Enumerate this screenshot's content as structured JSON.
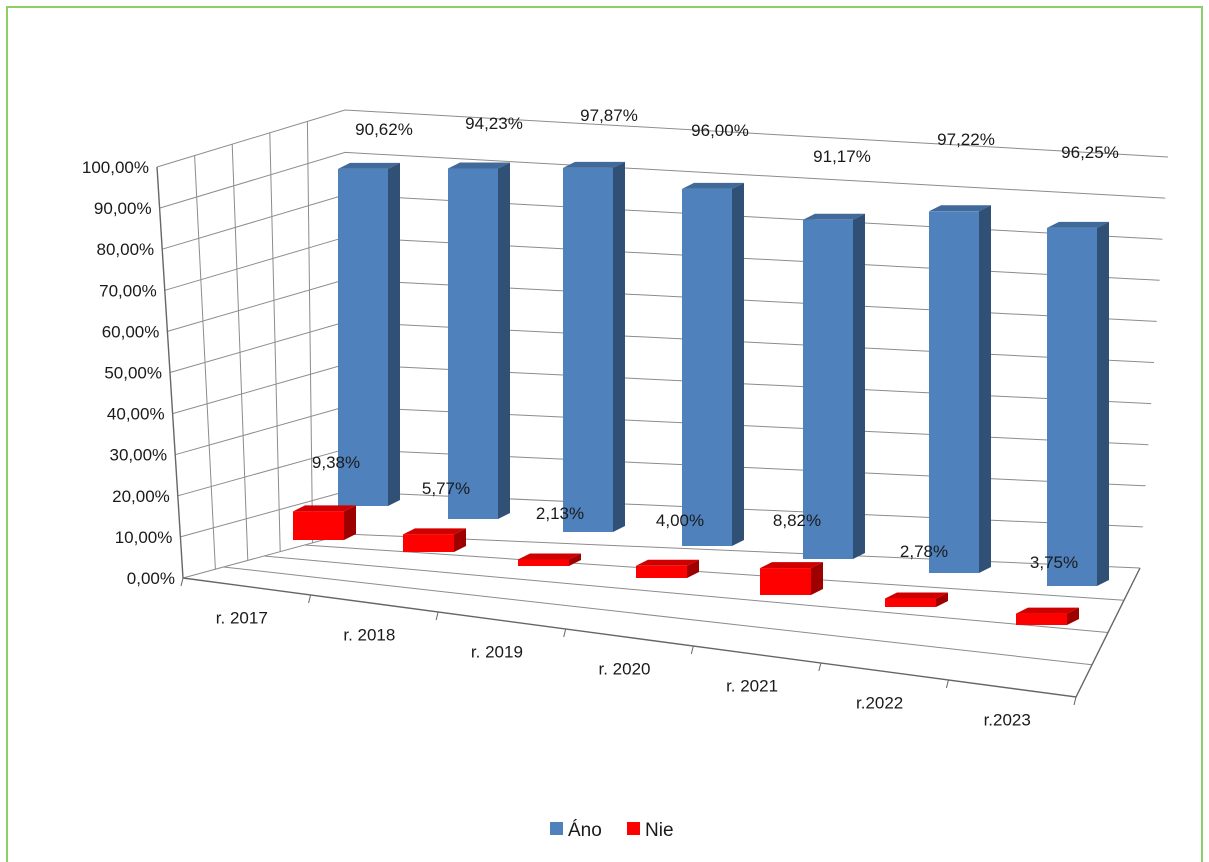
{
  "chart_data": {
    "type": "bar",
    "title": "",
    "xlabel": "",
    "ylabel": "",
    "categories": [
      "r. 2017",
      "r. 2018",
      "r. 2019",
      "r. 2020",
      "r. 2021",
      "r.2022",
      "r.2023"
    ],
    "series": [
      {
        "name": "Áno",
        "color": "#4f81bd",
        "values": [
          90.62,
          94.23,
          97.87,
          96.0,
          91.17,
          97.22,
          96.25
        ],
        "labels": [
          "90,62%",
          "94,23%",
          "97,87%",
          "96,00%",
          "91,17%",
          "97,22%",
          "96,25%"
        ]
      },
      {
        "name": "Nie",
        "color": "#ff0000",
        "values": [
          9.38,
          5.77,
          2.13,
          4.0,
          8.82,
          2.78,
          3.75
        ],
        "labels": [
          "9,38%",
          "5,77%",
          "2,13%",
          "4,00%",
          "8,82%",
          "2,78%",
          "3,75%"
        ]
      }
    ],
    "ylim": [
      0,
      100
    ],
    "yticks": [
      "0,00%",
      "10,00%",
      "20,00%",
      "30,00%",
      "40,00%",
      "50,00%",
      "60,00%",
      "70,00%",
      "80,00%",
      "90,00%",
      "100,00%"
    ],
    "grid": true,
    "three_d": true,
    "legend_position": "bottom"
  }
}
